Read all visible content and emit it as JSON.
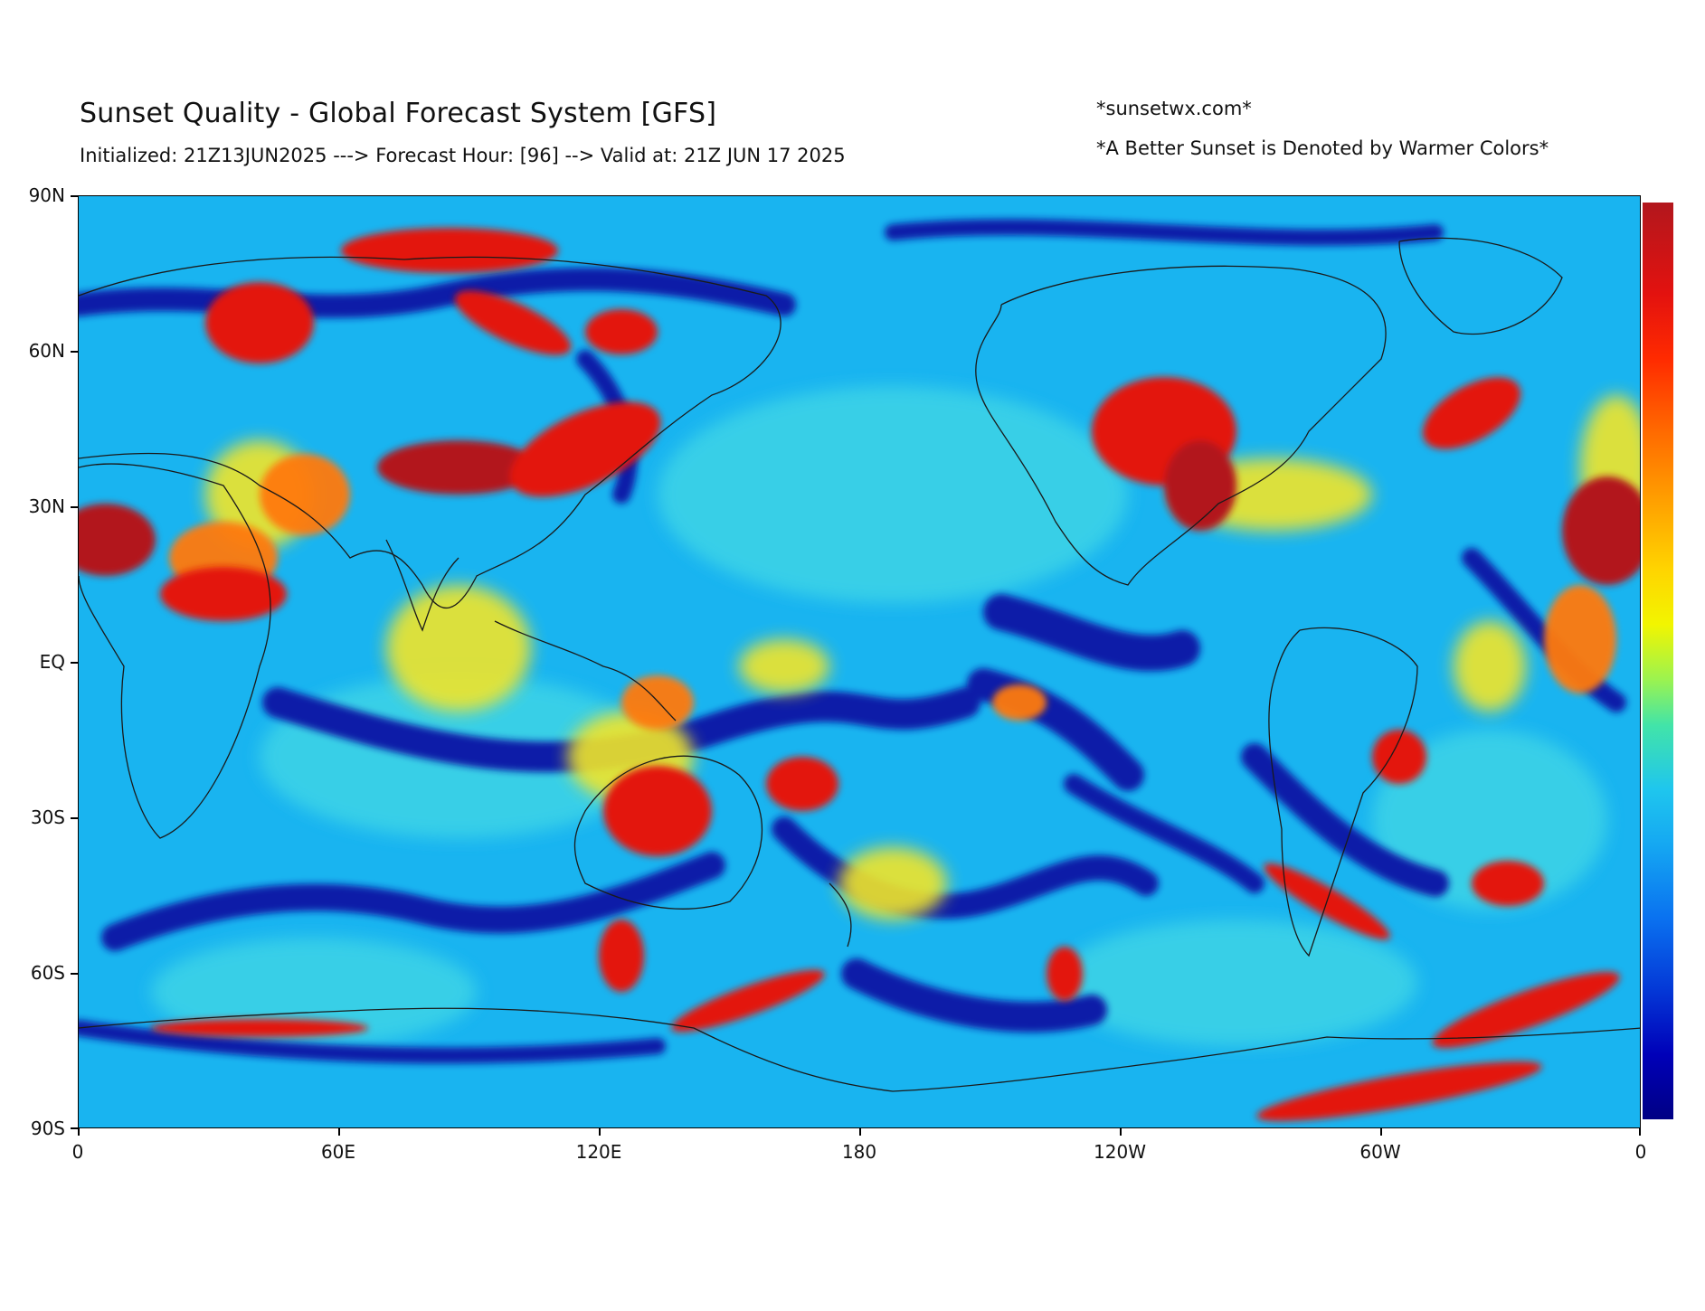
{
  "header": {
    "title": "Sunset Quality - Global Forecast System [GFS]",
    "subtitle": "Initialized: 21Z13JUN2025 ---> Forecast Hour: [96] --> Valid at: 21Z JUN 17 2025",
    "credit": "*sunsetwx.com*",
    "note": "*A Better Sunset is Denoted by Warmer Colors*"
  },
  "axes": {
    "lat_ticks": [
      "90N",
      "60N",
      "30N",
      "EQ",
      "30S",
      "60S",
      "90S"
    ],
    "lon_ticks": [
      "0",
      "60E",
      "120E",
      "180",
      "120W",
      "60W",
      "0"
    ]
  },
  "colorbar": {
    "scale": "warm colors = better sunset",
    "colors": [
      "#b2171d",
      "#ff2a00",
      "#ffa300",
      "#f2f500",
      "#42e4a8",
      "#15a8f2",
      "#0437d6",
      "#000084"
    ]
  },
  "palette": {
    "ocean_base": "#19b4f0",
    "deep_blue": "#0a1aa8",
    "yellow": "#f0e52a",
    "orange": "#ff7a10",
    "red": "#e3120f",
    "dark_red": "#b2171d",
    "coastline": "#1a1a1a"
  }
}
